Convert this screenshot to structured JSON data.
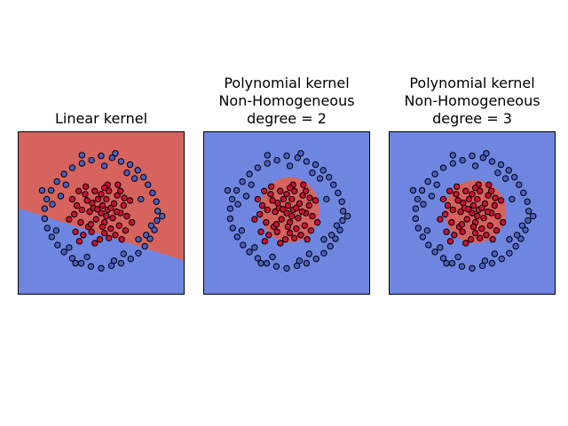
{
  "colors": {
    "class_outer": "#4a5fc4",
    "class_inner": "#cc1133",
    "region_outer": "#6f86e0",
    "region_inner": "#d6635e",
    "point_edge": "#000000",
    "axes_frame": "#000000"
  },
  "chart_data": [
    {
      "type": "scatter",
      "title_lines": [
        "Linear kernel"
      ],
      "xlim": [
        -1.3,
        1.3
      ],
      "ylim": [
        -1.3,
        1.3
      ],
      "xticks": "none",
      "yticks": "none",
      "decision_boundary": {
        "kind": "line",
        "points": [
          [
            -1.3,
            0.08
          ],
          [
            1.3,
            -0.76
          ]
        ],
        "upper_side_class": "inner"
      }
    },
    {
      "type": "scatter",
      "title_lines": [
        "Polynomial kernel",
        "Non-Homogeneous",
        "degree = 2"
      ],
      "xlim": [
        -1.3,
        1.3
      ],
      "ylim": [
        -1.3,
        1.3
      ],
      "xticks": "none",
      "yticks": "none",
      "decision_boundary": {
        "kind": "ellipse",
        "center": [
          0.05,
          0.05
        ],
        "rx": 0.46,
        "ry": 0.52
      }
    },
    {
      "type": "scatter",
      "title_lines": [
        "Polynomial kernel",
        "Non-Homogeneous",
        "degree = 3"
      ],
      "xlim": [
        -1.3,
        1.3
      ],
      "ylim": [
        -1.3,
        1.3
      ],
      "xticks": "none",
      "yticks": "none",
      "decision_boundary": {
        "kind": "ellipse",
        "center": [
          0.05,
          0.02
        ],
        "rx": 0.48,
        "ry": 0.5
      }
    }
  ],
  "points": {
    "outer": [
      [
        0.0,
        0.91
      ],
      [
        0.17,
        0.88
      ],
      [
        0.31,
        0.82
      ],
      [
        0.45,
        0.77
      ],
      [
        0.57,
        0.68
      ],
      [
        0.66,
        0.57
      ],
      [
        0.73,
        0.45
      ],
      [
        0.8,
        0.32
      ],
      [
        0.86,
        0.18
      ],
      [
        0.88,
        0.03
      ],
      [
        0.87,
        -0.12
      ],
      [
        0.83,
        -0.27
      ],
      [
        0.76,
        -0.41
      ],
      [
        0.68,
        -0.53
      ],
      [
        0.58,
        -0.64
      ],
      [
        0.46,
        -0.73
      ],
      [
        0.31,
        -0.8
      ],
      [
        0.16,
        -0.84
      ],
      [
        0.0,
        -0.88
      ],
      [
        -0.16,
        -0.85
      ],
      [
        -0.31,
        -0.8
      ],
      [
        -0.45,
        -0.72
      ],
      [
        -0.58,
        -0.62
      ],
      [
        -0.68,
        -0.51
      ],
      [
        -0.77,
        -0.38
      ],
      [
        -0.84,
        -0.24
      ],
      [
        -0.88,
        -0.09
      ],
      [
        -0.88,
        0.07
      ],
      [
        -0.85,
        0.22
      ],
      [
        -0.78,
        0.36
      ],
      [
        -0.69,
        0.5
      ],
      [
        -0.58,
        0.62
      ],
      [
        -0.45,
        0.72
      ],
      [
        -0.3,
        0.79
      ],
      [
        -0.15,
        0.84
      ],
      [
        -0.63,
        0.27
      ],
      [
        -0.55,
        0.45
      ],
      [
        0.62,
        0.22
      ],
      [
        0.58,
        -0.42
      ],
      [
        0.7,
        -0.35
      ],
      [
        0.2,
        -0.76
      ],
      [
        -0.22,
        -0.7
      ],
      [
        -0.7,
        -0.28
      ],
      [
        -0.76,
        0.14
      ],
      [
        0.4,
        0.64
      ],
      [
        0.05,
        0.75
      ],
      [
        -0.4,
        -0.8
      ],
      [
        0.35,
        -0.65
      ],
      [
        0.78,
        -0.2
      ],
      [
        -0.92,
        0.36
      ],
      [
        0.95,
        -0.05
      ],
      [
        -0.5,
        -0.55
      ],
      [
        0.52,
        0.55
      ],
      [
        -0.3,
        0.92
      ],
      [
        0.22,
        0.95
      ]
    ],
    "inner": [
      [
        0.0,
        0.0
      ],
      [
        0.1,
        0.05
      ],
      [
        -0.12,
        0.08
      ],
      [
        0.05,
        -0.15
      ],
      [
        -0.08,
        -0.1
      ],
      [
        0.2,
        0.15
      ],
      [
        -0.22,
        0.2
      ],
      [
        0.15,
        -0.25
      ],
      [
        -0.2,
        -0.22
      ],
      [
        0.3,
        0.0
      ],
      [
        -0.3,
        0.05
      ],
      [
        0.0,
        0.3
      ],
      [
        0.05,
        -0.32
      ],
      [
        0.25,
        0.28
      ],
      [
        -0.25,
        0.3
      ],
      [
        0.28,
        -0.2
      ],
      [
        -0.32,
        -0.15
      ],
      [
        0.12,
        0.35
      ],
      [
        -0.05,
        0.22
      ],
      [
        0.18,
        -0.08
      ],
      [
        -0.15,
        -0.3
      ],
      [
        0.35,
        0.12
      ],
      [
        -0.38,
        0.12
      ],
      [
        0.02,
        0.12
      ],
      [
        -0.1,
        0.35
      ],
      [
        0.22,
        -0.35
      ],
      [
        -0.28,
        -0.35
      ],
      [
        0.4,
        -0.05
      ],
      [
        -0.42,
        -0.02
      ],
      [
        0.08,
        0.22
      ],
      [
        -0.18,
        0.02
      ],
      [
        0.12,
        -0.4
      ],
      [
        -0.02,
        -0.42
      ],
      [
        0.3,
        0.35
      ],
      [
        -0.35,
        0.35
      ],
      [
        0.38,
        -0.28
      ],
      [
        -0.4,
        -0.3
      ],
      [
        0.15,
        0.08
      ],
      [
        -0.06,
        0.06
      ],
      [
        0.24,
        0.02
      ],
      [
        -0.14,
        0.16
      ],
      [
        0.02,
        -0.22
      ],
      [
        0.45,
        0.2
      ],
      [
        -0.45,
        0.22
      ],
      [
        0.1,
        0.45
      ],
      [
        -0.1,
        -0.48
      ],
      [
        0.26,
        0.45
      ],
      [
        -0.24,
        0.42
      ],
      [
        0.32,
        -0.42
      ],
      [
        -0.34,
        -0.45
      ],
      [
        0.48,
        -0.15
      ],
      [
        -0.5,
        -0.1
      ],
      [
        0.05,
        0.4
      ],
      [
        0.36,
        0.24
      ],
      [
        -0.16,
        -0.18
      ],
      [
        0.08,
        -0.05
      ]
    ]
  }
}
